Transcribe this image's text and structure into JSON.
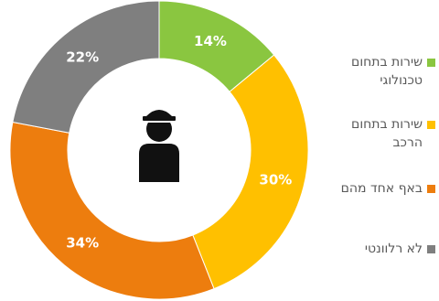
{
  "chart_data": {
    "type": "pie",
    "variant": "donut",
    "categories": [
      "שירות בתחום טכנולוגי",
      "שירות בתחום הרכב",
      "באף אחד מהם",
      "לא רלוונטי"
    ],
    "values": [
      14,
      30,
      34,
      22
    ],
    "value_labels": [
      "14%",
      "30%",
      "34%",
      "22%"
    ],
    "colors": [
      "#8ac640",
      "#ffc000",
      "#ed7d0e",
      "#7f7f7f"
    ],
    "center_icon": "person-with-cap-icon",
    "legend_position": "right"
  },
  "legend": {
    "items": [
      {
        "label": "שירות בתחום\nטכנולוגי",
        "color": "#8ac640"
      },
      {
        "label": "שירות בתחום\nהרכב",
        "color": "#ffc000"
      },
      {
        "label": "באף אחד מהם",
        "color": "#ed7d0e"
      },
      {
        "label": "לא רלוונטי",
        "color": "#7f7f7f"
      }
    ]
  }
}
